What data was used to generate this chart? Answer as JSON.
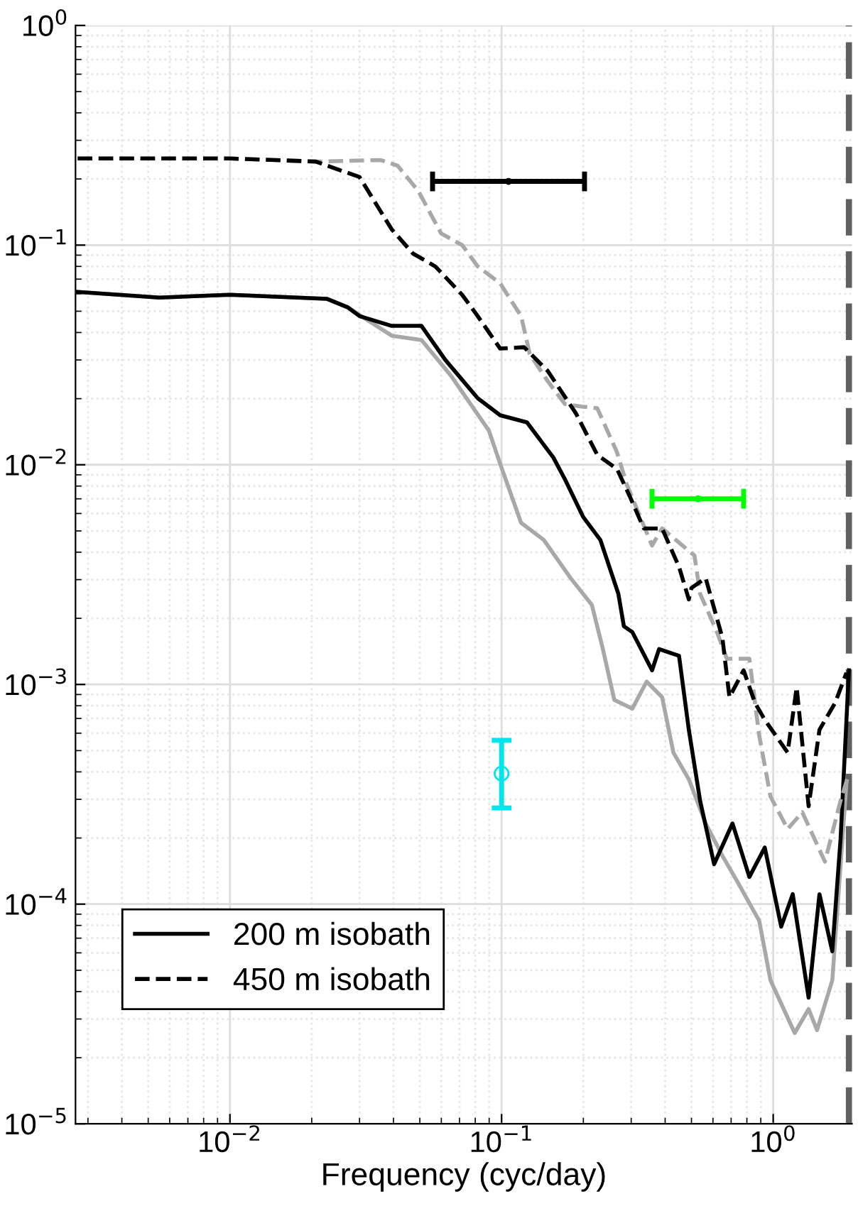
{
  "chart_data": {
    "type": "line",
    "xlabel": "Frequency (cyc/day)",
    "log": "xy",
    "grid": true,
    "legend": "bottom left",
    "xlim": [
      0.0027,
      1.95
    ],
    "ylim": [
      1e-05,
      1
    ],
    "xticks": [
      {
        "value": 0.01,
        "label": "10$^{−2}$"
      },
      {
        "value": 0.1,
        "label": "10$^{−1}$"
      },
      {
        "value": 1,
        "label": "10$^{0}$"
      }
    ],
    "yticks": [
      {
        "value": 1e-05,
        "label": "10$^{−5}$"
      },
      {
        "value": 0.0001,
        "label": "10$^{−4}$"
      },
      {
        "value": 0.001,
        "label": "10$^{−3}$"
      },
      {
        "value": 0.01,
        "label": "10$^{−2}$"
      },
      {
        "value": 0.1,
        "label": "10$^{−1}$"
      },
      {
        "value": 1,
        "label": "10$^{0}$"
      }
    ],
    "ref_lines": [
      {
        "axis": "x",
        "value": 1.93,
        "label": null,
        "color": "#606060",
        "line_style": "dashed"
      }
    ],
    "series": [
      {
        "color": "#a8a8a8",
        "line_style": "solid",
        "x": [
          0.00275,
          0.0055,
          0.01,
          0.0228,
          0.0272,
          0.0394,
          0.0507,
          0.065,
          0.0898,
          0.0988,
          0.118,
          0.143,
          0.1795,
          0.215,
          0.236,
          0.26,
          0.303,
          0.342,
          0.39,
          0.429,
          0.489,
          0.564,
          0.65,
          0.742,
          0.888,
          0.977,
          1.2,
          1.35,
          1.45,
          1.65,
          1.86
        ],
        "values": [
          0.0612,
          0.0577,
          0.0594,
          0.0569,
          0.052,
          0.0387,
          0.037,
          0.0255,
          0.0143,
          0.0101,
          0.00544,
          0.00455,
          0.00305,
          0.0023,
          0.00145,
          0.00085,
          0.000777,
          0.00103,
          0.000875,
          0.00049,
          0.00037,
          0.000233,
          0.000166,
          0.000125,
          8.4e-05,
          4.5e-05,
          2.59e-05,
          3.33e-05,
          2.67e-05,
          4.5e-05,
          0.000353
        ]
      },
      {
        "name": "200 m isobath",
        "color": "#000000",
        "line_style": "solid",
        "x": [
          0.00275,
          0.0055,
          0.01,
          0.0228,
          0.0272,
          0.03,
          0.0394,
          0.0507,
          0.0621,
          0.0817,
          0.0988,
          0.124,
          0.155,
          0.171,
          0.2,
          0.231,
          0.269,
          0.282,
          0.303,
          0.358,
          0.38,
          0.45,
          0.489,
          0.538,
          0.606,
          0.708,
          0.817,
          0.931,
          1.07,
          1.18,
          1.35,
          1.48,
          1.65,
          1.77,
          1.9
        ],
        "values": [
          0.0612,
          0.0577,
          0.0594,
          0.0569,
          0.052,
          0.0475,
          0.0429,
          0.0429,
          0.03,
          0.0201,
          0.0168,
          0.0156,
          0.0108,
          0.0086,
          0.00577,
          0.00455,
          0.00259,
          0.00184,
          0.00173,
          0.00116,
          0.00145,
          0.00135,
          0.000622,
          0.000296,
          0.000152,
          0.000233,
          0.000133,
          0.000181,
          7.9e-05,
          0.000111,
          3.75e-05,
          0.000111,
          6.1e-05,
          0.000198,
          0.00116
        ]
      },
      {
        "color": "#a8a8a8",
        "line_style": "dashed",
        "x": [
          0.00275,
          0.01,
          0.0207,
          0.0358,
          0.0414,
          0.0494,
          0.0599,
          0.0716,
          0.0817,
          0.0988,
          0.118,
          0.127,
          0.148,
          0.171,
          0.197,
          0.225,
          0.266,
          0.289,
          0.358,
          0.39,
          0.513,
          0.538,
          0.621,
          0.675,
          0.817,
          0.888,
          0.977,
          1.13,
          1.28,
          1.55,
          1.77,
          1.9
        ],
        "values": [
          0.248,
          0.248,
          0.24,
          0.244,
          0.23,
          0.176,
          0.113,
          0.1,
          0.08,
          0.067,
          0.0475,
          0.0319,
          0.024,
          0.0189,
          0.0184,
          0.0181,
          0.0114,
          0.00813,
          0.00429,
          0.00513,
          0.00386,
          0.00259,
          0.00173,
          0.00131,
          0.00131,
          0.000586,
          0.000309,
          0.00022,
          0.000262,
          0.000156,
          0.000296,
          0.000393
        ]
      },
      {
        "name": "450 m isobath",
        "color": "#000000",
        "line_style": "dashed",
        "x": [
          0.00275,
          0.01,
          0.0207,
          0.03,
          0.0394,
          0.0472,
          0.057,
          0.0716,
          0.0817,
          0.0988,
          0.121,
          0.148,
          0.188,
          0.225,
          0.266,
          0.296,
          0.334,
          0.39,
          0.45,
          0.489,
          0.5,
          0.564,
          0.65,
          0.69,
          0.778,
          0.857,
          0.931,
          1.13,
          1.22,
          1.35,
          1.48,
          1.69,
          1.86
        ],
        "values": [
          0.248,
          0.248,
          0.24,
          0.204,
          0.118,
          0.0915,
          0.08,
          0.0594,
          0.0475,
          0.0338,
          0.0343,
          0.0267,
          0.0171,
          0.0111,
          0.00957,
          0.00721,
          0.00513,
          0.00513,
          0.00343,
          0.00244,
          0.00275,
          0.00305,
          0.00163,
          0.000875,
          0.00116,
          0.000824,
          0.00069,
          0.00049,
          0.00097,
          0.000279,
          0.000622,
          0.000824,
          0.00113
        ]
      },
      {
        "type": "scatter",
        "color": "#000000",
        "marker": "none",
        "x": [
          0.106
        ],
        "values": [
          0.195
        ],
        "xerrors": [
          [
            0.0557,
            0.202
          ]
        ]
      },
      {
        "type": "scatter",
        "color": "#00ff00",
        "marker": "none",
        "x": [
          0.528
        ],
        "values": [
          0.007
        ],
        "xerrors": [
          [
            0.358,
            0.778
          ]
        ]
      },
      {
        "type": "scatter",
        "color": "#00e5ee",
        "marker": "circle",
        "x": [
          0.1
        ],
        "values": [
          0.000393
        ],
        "errors": [
          [
            0.000274,
            0.000557
          ]
        ]
      }
    ]
  }
}
